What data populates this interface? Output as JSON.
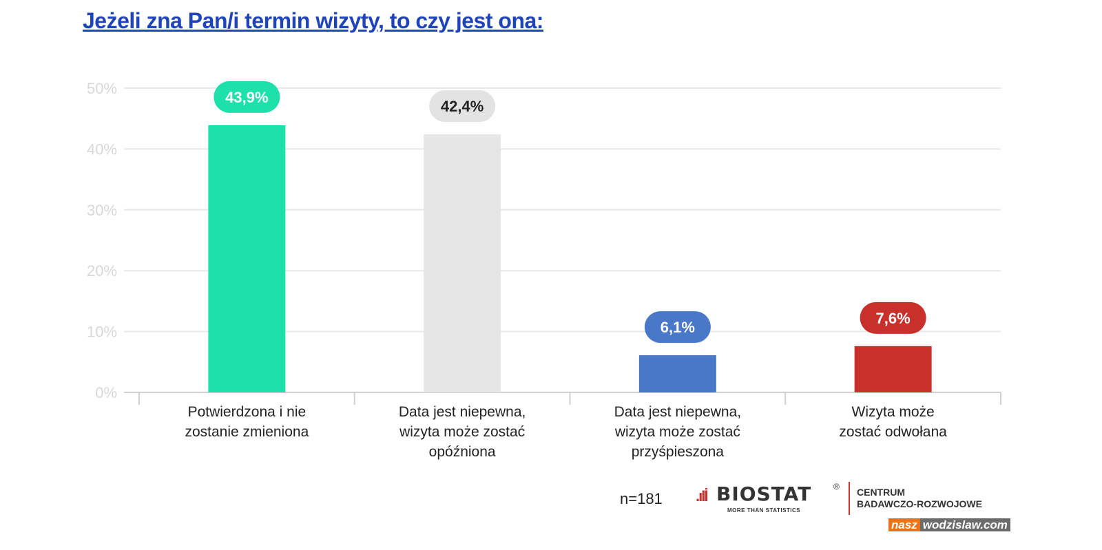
{
  "title": "Jeżeli zna Pan/i termin wizyty, to czy jest ona:",
  "chart_data": {
    "type": "bar",
    "title": "Jeżeli zna Pan/i termin wizyty, to czy jest ona:",
    "categories": [
      "Potwierdzona i nie\nzostanie zmieniona",
      "Data jest niepewna,\nwizyta może zostać\nopóźniona",
      "Data jest niepewna,\nwizyta może zostać\nprzyśpieszona",
      "Wizyta może\nzostać odwołana"
    ],
    "values": [
      43.9,
      42.4,
      6.1,
      7.6
    ],
    "data_labels": [
      "43,9%",
      "42,4%",
      "6,1%",
      "7,6%"
    ],
    "colors": [
      "#1de0ab",
      "#e6e6e6",
      "#4a78c8",
      "#c8302c"
    ],
    "label_text_colors": [
      "#ffffff",
      "#222222",
      "#ffffff",
      "#ffffff"
    ],
    "label_bg_colors": [
      "#1de0ab",
      "#e3e3e3",
      "#4a78c8",
      "#c8302c"
    ],
    "yticks": [
      "0%",
      "10%",
      "20%",
      "30%",
      "40%",
      "50%"
    ],
    "ylim": [
      0,
      50
    ],
    "grid": true,
    "xlabel": "",
    "ylabel": ""
  },
  "footer": {
    "n": "n=181",
    "logo_name": "BIOSTAT",
    "logo_tagline": "MORE THAN STATISTICS",
    "logo_reg": "®",
    "center_line1": "CENTRUM",
    "center_line2": "BADAWCZO-ROZWOJOWE",
    "watermark_a": "nasz",
    "watermark_b": "wodzislaw.com"
  }
}
